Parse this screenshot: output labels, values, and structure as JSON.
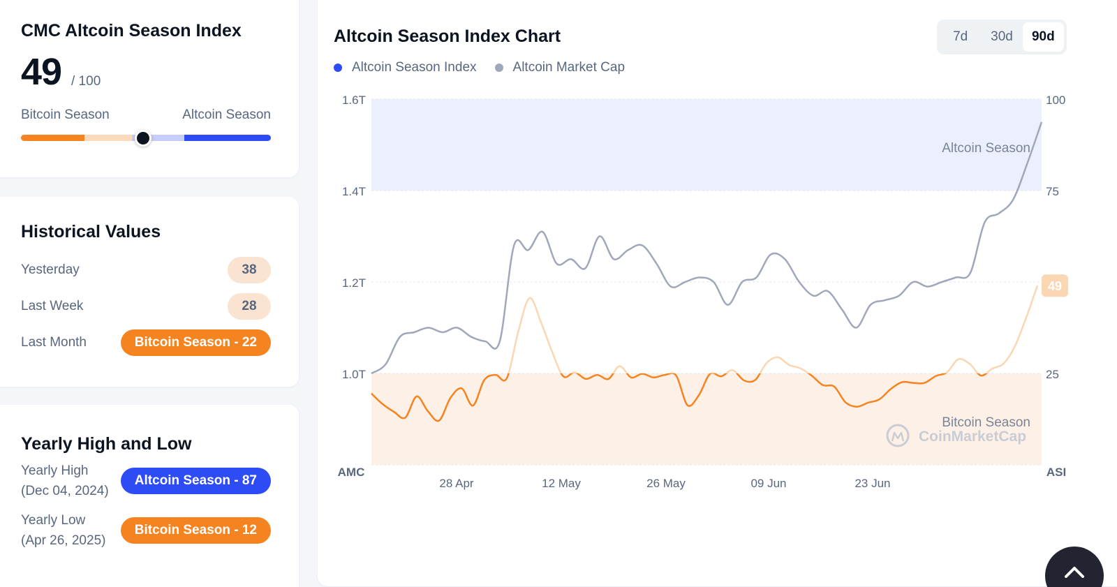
{
  "index_card": {
    "title": "CMC Altcoin Season Index",
    "value": "49",
    "max": "/ 100",
    "left_label": "Bitcoin Season",
    "right_label": "Altcoin Season",
    "gauge_level": 49,
    "gauge_colors": [
      "#f5831f",
      "#fbd9bd",
      "#c6cdfb",
      "#2e4cf5"
    ]
  },
  "historical": {
    "title": "Historical Values",
    "rows": [
      {
        "label": "Yesterday",
        "value": "38"
      },
      {
        "label": "Last Week",
        "value": "28"
      },
      {
        "label": "Last Month",
        "value": "Bitcoin Season - 22"
      }
    ]
  },
  "yearly": {
    "title": "Yearly High and Low",
    "high_label": "Yearly High",
    "high_date": "(Dec 04, 2024)",
    "high_value": "Altcoin Season - 87",
    "low_label": "Yearly Low",
    "low_date": "(Apr 26, 2025)",
    "low_value": "Bitcoin Season - 12"
  },
  "chart_header": {
    "title": "Altcoin Season Index Chart",
    "ranges": [
      "7d",
      "30d",
      "90d"
    ],
    "active_range": "90d"
  },
  "colors": {
    "index_blue": "#2e4cf5",
    "market_cap_gray": "#a1a7bb",
    "bitcoin_orange": "#f5831f",
    "altcoin_band": "#eceffd",
    "bitcoin_band": "#fdf1e7"
  },
  "scroll_top": {
    "icon": "chevron-up-icon"
  },
  "chart_data": {
    "type": "line",
    "title": "Altcoin Season Index Chart",
    "x_ticks": [
      "28 Apr",
      "12 May",
      "26 May",
      "09 Jun",
      "23 Jun"
    ],
    "left_axis": {
      "label": "AMC",
      "ticks": [
        "1.6T",
        "1.4T",
        "1.2T",
        "1.0T"
      ],
      "range": [
        0.8,
        1.6
      ]
    },
    "right_axis": {
      "label": "ASI",
      "ticks": [
        "100",
        "75",
        "25"
      ],
      "range": [
        0,
        100
      ]
    },
    "bands": [
      {
        "label": "Altcoin Season",
        "from": 75,
        "to": 100
      },
      {
        "label": "Bitcoin Season",
        "from": 0,
        "to": 25
      }
    ],
    "watermark": "CoinMarketCap",
    "current_label": "49",
    "legend_position": "top-left",
    "series": [
      {
        "name": "Altcoin Season Index",
        "axis": "right",
        "values": [
          19.5,
          16.6,
          14.5,
          12.9,
          18.7,
          14.7,
          12.1,
          18.3,
          20.9,
          16.2,
          23.2,
          24.6,
          23.7,
          36.3,
          45.6,
          39.2,
          31.0,
          24.2,
          25.3,
          23.5,
          24.6,
          23.5,
          27.0,
          23.9,
          24.9,
          23.9,
          24.6,
          24.4,
          16.3,
          19.0,
          24.9,
          24.2,
          25.9,
          23.1,
          23.2,
          27.8,
          29.4,
          27.3,
          26.4,
          24.4,
          21.8,
          21.4,
          17.1,
          15.9,
          17.0,
          17.9,
          20.7,
          22.6,
          22.4,
          22.4,
          24.3,
          25.3,
          28.9,
          27.6,
          24.4,
          26.3,
          27.7,
          32.4,
          40.2,
          49.0
        ]
      },
      {
        "name": "Altcoin Market Cap",
        "axis": "left",
        "values": [
          1.0,
          1.02,
          1.08,
          1.09,
          1.1,
          1.09,
          1.1,
          1.08,
          1.07,
          1.07,
          1.28,
          1.27,
          1.31,
          1.24,
          1.25,
          1.23,
          1.3,
          1.25,
          1.27,
          1.28,
          1.24,
          1.19,
          1.2,
          1.21,
          1.2,
          1.15,
          1.2,
          1.21,
          1.26,
          1.25,
          1.2,
          1.17,
          1.18,
          1.14,
          1.1,
          1.15,
          1.16,
          1.17,
          1.2,
          1.19,
          1.2,
          1.21,
          1.22,
          1.33,
          1.35,
          1.38,
          1.46,
          1.55
        ]
      }
    ]
  }
}
